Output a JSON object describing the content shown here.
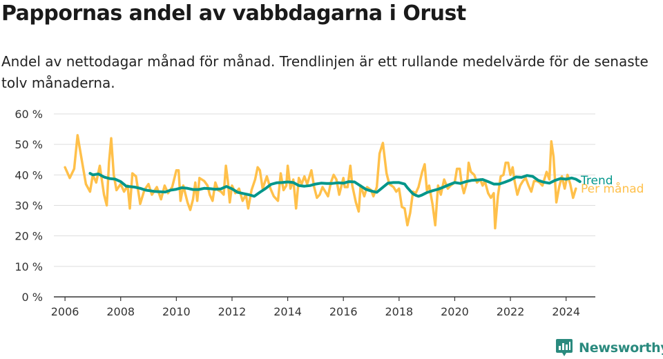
{
  "title": "Pappornas andel av vabbdagarna i Orust",
  "subtitle": "Andel av nettodagar månad för månad. Trendlinjen är ett rullande medelvärde för de senaste tolv månaderna.",
  "brand": {
    "name": "Newsworthy"
  },
  "colors": {
    "trend": "#00968a",
    "monthly": "#ffc04a",
    "grid": "#dddddd",
    "axis": "#333333",
    "brand": "#2a8a7e"
  },
  "chart_data": {
    "type": "line",
    "title": "Pappornas andel av vabbdagarna i Orust",
    "ylim": [
      0,
      60
    ],
    "xlim": [
      2005.6,
      2025.05
    ],
    "y_ticks": [
      0,
      10,
      20,
      30,
      40,
      50,
      60
    ],
    "y_tick_labels": [
      "0 %",
      "10 %",
      "20 %",
      "30 %",
      "40 %",
      "50 %",
      "60 %"
    ],
    "x_ticks": [
      2006,
      2008,
      2010,
      2012,
      2014,
      2016,
      2018,
      2020,
      2022,
      2024
    ],
    "x_tick_labels": [
      "2006",
      "2008",
      "2010",
      "2012",
      "2014",
      "2016",
      "2018",
      "2020",
      "2022",
      "2024"
    ],
    "grid": true,
    "legend": "direct labels at line ends",
    "series": [
      {
        "name": "Per månad",
        "color": "#ffc04a",
        "points": [
          [
            2006.0,
            42.5
          ],
          [
            2006.17,
            39.0
          ],
          [
            2006.33,
            42.0
          ],
          [
            2006.45,
            53.0
          ],
          [
            2006.6,
            45.0
          ],
          [
            2006.75,
            37.0
          ],
          [
            2006.9,
            34.5
          ],
          [
            2007.0,
            40.0
          ],
          [
            2007.12,
            37.5
          ],
          [
            2007.25,
            43.0
          ],
          [
            2007.4,
            33.5
          ],
          [
            2007.5,
            30.0
          ],
          [
            2007.58,
            44.0
          ],
          [
            2007.66,
            52.0
          ],
          [
            2007.75,
            40.0
          ],
          [
            2007.85,
            35.0
          ],
          [
            2008.0,
            37.0
          ],
          [
            2008.12,
            34.5
          ],
          [
            2008.25,
            36.5
          ],
          [
            2008.33,
            29.0
          ],
          [
            2008.42,
            40.5
          ],
          [
            2008.55,
            39.5
          ],
          [
            2008.7,
            30.5
          ],
          [
            2008.85,
            35.0
          ],
          [
            2009.0,
            37.0
          ],
          [
            2009.12,
            33.5
          ],
          [
            2009.3,
            36.0
          ],
          [
            2009.45,
            32.0
          ],
          [
            2009.58,
            36.5
          ],
          [
            2009.7,
            34.0
          ],
          [
            2009.85,
            36.0
          ],
          [
            2010.0,
            41.5
          ],
          [
            2010.08,
            41.5
          ],
          [
            2010.15,
            31.5
          ],
          [
            2010.25,
            36.5
          ],
          [
            2010.4,
            31.0
          ],
          [
            2010.5,
            28.5
          ],
          [
            2010.6,
            32.0
          ],
          [
            2010.68,
            37.5
          ],
          [
            2010.75,
            31.5
          ],
          [
            2010.83,
            39.0
          ],
          [
            2011.0,
            38.0
          ],
          [
            2011.12,
            36.5
          ],
          [
            2011.2,
            33.5
          ],
          [
            2011.3,
            31.5
          ],
          [
            2011.4,
            37.5
          ],
          [
            2011.5,
            35.0
          ],
          [
            2011.6,
            34.5
          ],
          [
            2011.7,
            33.5
          ],
          [
            2011.78,
            43.0
          ],
          [
            2011.85,
            38.0
          ],
          [
            2011.92,
            31.0
          ],
          [
            2012.0,
            36.5
          ],
          [
            2012.12,
            34.0
          ],
          [
            2012.25,
            35.5
          ],
          [
            2012.38,
            31.5
          ],
          [
            2012.5,
            33.5
          ],
          [
            2012.58,
            29.0
          ],
          [
            2012.7,
            35.0
          ],
          [
            2012.83,
            38.5
          ],
          [
            2012.92,
            42.5
          ],
          [
            2013.0,
            41.5
          ],
          [
            2013.1,
            35.5
          ],
          [
            2013.25,
            39.5
          ],
          [
            2013.38,
            35.5
          ],
          [
            2013.5,
            33.0
          ],
          [
            2013.65,
            31.5
          ],
          [
            2013.75,
            40.5
          ],
          [
            2013.85,
            35.0
          ],
          [
            2013.95,
            36.5
          ],
          [
            2014.0,
            43.0
          ],
          [
            2014.1,
            35.5
          ],
          [
            2014.2,
            38.5
          ],
          [
            2014.3,
            29.0
          ],
          [
            2014.4,
            39.0
          ],
          [
            2014.5,
            37.0
          ],
          [
            2014.6,
            39.5
          ],
          [
            2014.7,
            37.0
          ],
          [
            2014.85,
            41.5
          ],
          [
            2014.95,
            36.0
          ],
          [
            2015.05,
            32.5
          ],
          [
            2015.15,
            33.5
          ],
          [
            2015.25,
            36.0
          ],
          [
            2015.35,
            34.5
          ],
          [
            2015.45,
            33.0
          ],
          [
            2015.55,
            37.5
          ],
          [
            2015.65,
            40.0
          ],
          [
            2015.75,
            38.5
          ],
          [
            2015.85,
            33.5
          ],
          [
            2016.0,
            39.0
          ],
          [
            2016.05,
            36.0
          ],
          [
            2016.15,
            36.0
          ],
          [
            2016.25,
            43.0
          ],
          [
            2016.32,
            36.5
          ],
          [
            2016.45,
            31.0
          ],
          [
            2016.55,
            28.0
          ],
          [
            2016.62,
            36.5
          ],
          [
            2016.75,
            33.0
          ],
          [
            2016.85,
            36.0
          ],
          [
            2017.0,
            35.0
          ],
          [
            2017.08,
            33.0
          ],
          [
            2017.2,
            36.0
          ],
          [
            2017.3,
            47.0
          ],
          [
            2017.42,
            50.5
          ],
          [
            2017.55,
            40.5
          ],
          [
            2017.65,
            37.0
          ],
          [
            2017.8,
            36.0
          ],
          [
            2017.9,
            34.5
          ],
          [
            2018.0,
            35.5
          ],
          [
            2018.1,
            29.5
          ],
          [
            2018.2,
            29.0
          ],
          [
            2018.3,
            23.5
          ],
          [
            2018.4,
            27.5
          ],
          [
            2018.5,
            34.5
          ],
          [
            2018.6,
            34.0
          ],
          [
            2018.7,
            36.0
          ],
          [
            2018.83,
            41.0
          ],
          [
            2018.92,
            43.5
          ],
          [
            2019.0,
            35.0
          ],
          [
            2019.08,
            36.5
          ],
          [
            2019.2,
            30.5
          ],
          [
            2019.3,
            23.5
          ],
          [
            2019.4,
            36.5
          ],
          [
            2019.5,
            33.5
          ],
          [
            2019.62,
            38.5
          ],
          [
            2019.75,
            35.5
          ],
          [
            2019.85,
            36.5
          ],
          [
            2020.0,
            37.5
          ],
          [
            2020.08,
            42.0
          ],
          [
            2020.18,
            42.0
          ],
          [
            2020.25,
            37.0
          ],
          [
            2020.33,
            34.0
          ],
          [
            2020.45,
            38.0
          ],
          [
            2020.5,
            44.0
          ],
          [
            2020.58,
            41.0
          ],
          [
            2020.7,
            40.0
          ],
          [
            2020.8,
            37.5
          ],
          [
            2020.92,
            38.5
          ],
          [
            2021.0,
            36.5
          ],
          [
            2021.08,
            38.0
          ],
          [
            2021.2,
            34.0
          ],
          [
            2021.3,
            32.5
          ],
          [
            2021.4,
            34.0
          ],
          [
            2021.45,
            22.5
          ],
          [
            2021.55,
            33.0
          ],
          [
            2021.65,
            39.5
          ],
          [
            2021.75,
            40.0
          ],
          [
            2021.83,
            44.0
          ],
          [
            2021.92,
            44.0
          ],
          [
            2022.0,
            40.0
          ],
          [
            2022.08,
            42.5
          ],
          [
            2022.15,
            38.0
          ],
          [
            2022.25,
            33.5
          ],
          [
            2022.35,
            36.5
          ],
          [
            2022.45,
            38.0
          ],
          [
            2022.55,
            39.0
          ],
          [
            2022.65,
            36.5
          ],
          [
            2022.75,
            34.5
          ],
          [
            2022.85,
            38.0
          ],
          [
            2022.95,
            38.0
          ],
          [
            2023.05,
            37.5
          ],
          [
            2023.15,
            36.5
          ],
          [
            2023.3,
            41.0
          ],
          [
            2023.4,
            38.5
          ],
          [
            2023.47,
            51.0
          ],
          [
            2023.55,
            46.0
          ],
          [
            2023.65,
            31.0
          ],
          [
            2023.75,
            36.0
          ],
          [
            2023.85,
            39.5
          ],
          [
            2023.95,
            35.5
          ],
          [
            2024.05,
            40.0
          ],
          [
            2024.15,
            37.0
          ],
          [
            2024.25,
            32.5
          ],
          [
            2024.35,
            35.5
          ]
        ]
      },
      {
        "name": "Trend",
        "color": "#00968a",
        "points": [
          [
            2006.9,
            40.5
          ],
          [
            2007.0,
            40.0
          ],
          [
            2007.2,
            40.3
          ],
          [
            2007.4,
            39.3
          ],
          [
            2007.6,
            38.8
          ],
          [
            2007.8,
            38.6
          ],
          [
            2008.0,
            37.8
          ],
          [
            2008.2,
            36.3
          ],
          [
            2008.5,
            36.0
          ],
          [
            2008.7,
            35.6
          ],
          [
            2008.9,
            35.0
          ],
          [
            2009.2,
            34.6
          ],
          [
            2009.6,
            34.4
          ],
          [
            2009.8,
            35.0
          ],
          [
            2010.0,
            35.3
          ],
          [
            2010.2,
            35.8
          ],
          [
            2010.4,
            35.6
          ],
          [
            2010.6,
            35.2
          ],
          [
            2010.8,
            35.2
          ],
          [
            2011.0,
            35.6
          ],
          [
            2011.2,
            35.5
          ],
          [
            2011.4,
            35.3
          ],
          [
            2011.6,
            35.4
          ],
          [
            2011.8,
            36.2
          ],
          [
            2012.0,
            35.4
          ],
          [
            2012.2,
            34.3
          ],
          [
            2012.4,
            33.9
          ],
          [
            2012.6,
            33.5
          ],
          [
            2012.8,
            33.0
          ],
          [
            2013.0,
            34.3
          ],
          [
            2013.2,
            35.5
          ],
          [
            2013.4,
            36.9
          ],
          [
            2013.6,
            37.4
          ],
          [
            2013.8,
            37.5
          ],
          [
            2014.0,
            37.7
          ],
          [
            2014.2,
            37.5
          ],
          [
            2014.4,
            36.5
          ],
          [
            2014.6,
            36.3
          ],
          [
            2014.8,
            36.5
          ],
          [
            2015.0,
            37.0
          ],
          [
            2015.2,
            37.3
          ],
          [
            2015.4,
            37.2
          ],
          [
            2015.6,
            37.2
          ],
          [
            2015.8,
            37.4
          ],
          [
            2016.0,
            37.3
          ],
          [
            2016.2,
            37.8
          ],
          [
            2016.4,
            37.7
          ],
          [
            2016.6,
            36.5
          ],
          [
            2016.8,
            35.3
          ],
          [
            2017.0,
            34.7
          ],
          [
            2017.2,
            34.3
          ],
          [
            2017.4,
            35.8
          ],
          [
            2017.6,
            37.3
          ],
          [
            2017.8,
            37.5
          ],
          [
            2018.0,
            37.5
          ],
          [
            2018.2,
            37.0
          ],
          [
            2018.3,
            35.8
          ],
          [
            2018.4,
            34.8
          ],
          [
            2018.5,
            33.8
          ],
          [
            2018.6,
            33.3
          ],
          [
            2018.7,
            33.0
          ],
          [
            2018.8,
            33.3
          ],
          [
            2019.0,
            34.2
          ],
          [
            2019.2,
            34.8
          ],
          [
            2019.4,
            35.3
          ],
          [
            2019.6,
            36.0
          ],
          [
            2019.8,
            36.8
          ],
          [
            2020.0,
            37.5
          ],
          [
            2020.2,
            37.2
          ],
          [
            2020.4,
            37.8
          ],
          [
            2020.6,
            38.2
          ],
          [
            2020.8,
            38.3
          ],
          [
            2021.0,
            38.5
          ],
          [
            2021.2,
            37.8
          ],
          [
            2021.4,
            37.0
          ],
          [
            2021.6,
            37.0
          ],
          [
            2021.8,
            37.6
          ],
          [
            2022.0,
            38.3
          ],
          [
            2022.2,
            39.3
          ],
          [
            2022.4,
            39.2
          ],
          [
            2022.6,
            39.8
          ],
          [
            2022.8,
            39.5
          ],
          [
            2023.0,
            38.2
          ],
          [
            2023.2,
            37.6
          ],
          [
            2023.4,
            37.3
          ],
          [
            2023.6,
            38.2
          ],
          [
            2023.8,
            38.8
          ],
          [
            2024.0,
            38.6
          ],
          [
            2024.2,
            39.0
          ],
          [
            2024.35,
            38.6
          ],
          [
            2024.5,
            37.8
          ]
        ]
      }
    ]
  }
}
